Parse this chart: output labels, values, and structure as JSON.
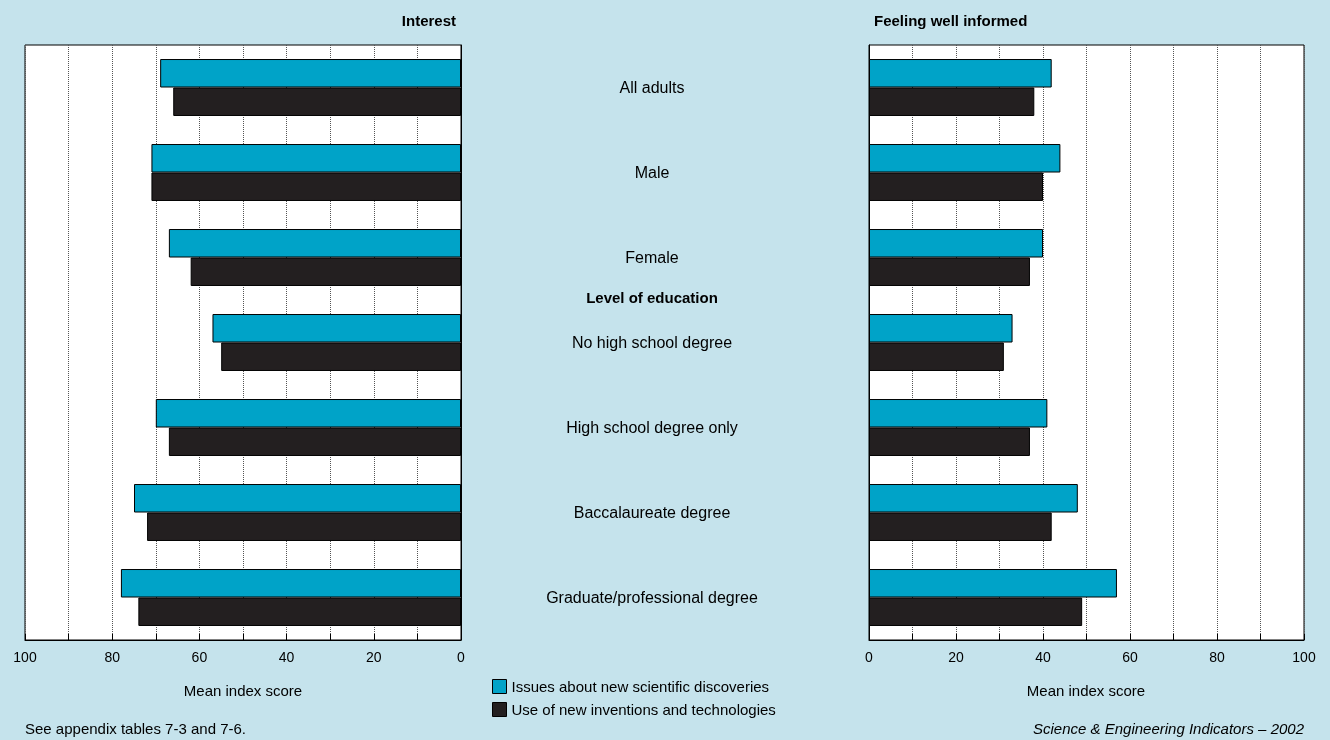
{
  "chart_data": [
    {
      "type": "bar",
      "orientation": "horizontal",
      "title": "Interest",
      "xlabel": "Mean index score",
      "categories": [
        "All adults",
        "Male",
        "Female",
        "No high school degree",
        "High school degree only",
        "Baccalaureate degree",
        "Graduate/professional degree"
      ],
      "series": [
        {
          "name": "Issues about new scientific discoveries",
          "color": "#00a3c8",
          "values": [
            69,
            71,
            67,
            57,
            70,
            75,
            78
          ]
        },
        {
          "name": "Use of new inventions and technologies",
          "color": "#231f20",
          "values": [
            66,
            71,
            62,
            55,
            67,
            72,
            74
          ]
        }
      ],
      "xlim": [
        100,
        0
      ],
      "xticks": [
        100,
        80,
        60,
        40,
        20,
        0
      ],
      "grid": "x",
      "legend": "bottom right",
      "annotations": [
        "Level of education",
        "See appendix tables 7-3 and 7-6."
      ]
    },
    {
      "type": "bar",
      "orientation": "horizontal",
      "title": "Feeling well informed",
      "xlabel": "Mean index score",
      "categories": [
        null,
        null,
        null,
        null,
        null,
        null,
        null
      ],
      "series": [
        {
          "color": "#00a3c8",
          "values": [
            42,
            44,
            40,
            33,
            41,
            48,
            57
          ]
        },
        {
          "color": "#231f20",
          "values": [
            38,
            40,
            37,
            31,
            37,
            42,
            49
          ]
        }
      ],
      "xlim": [
        0,
        100
      ],
      "xticks": [
        0,
        20,
        40,
        60,
        80,
        100
      ],
      "grid": "x",
      "tick_labels": "x",
      "annotations": [
        "Science & Engineering Indicators – 2002"
      ]
    }
  ]
}
